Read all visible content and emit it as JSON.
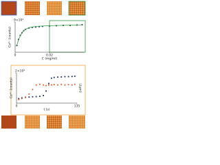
{
  "chart_data": [
    {
      "type": "scatter",
      "xlabel": "C (mg/ml)",
      "ylabel": "Co²⁺ (counts)",
      "xlim": [
        0,
        0.04
      ],
      "ylim": [
        0,
        90000
      ],
      "xticks": [
        0,
        0.02
      ],
      "yticks": [
        {
          "value": 90000,
          "label": "9×10⁴"
        }
      ],
      "x": [
        0.001,
        0.002,
        0.003,
        0.004,
        0.005,
        0.006,
        0.008,
        0.01,
        0.012,
        0.014,
        0.016,
        0.02,
        0.024,
        0.028,
        0.032,
        0.036,
        0.039
      ],
      "series": [
        {
          "color": "#1a2a5e",
          "values": [
            20000,
            38000,
            50000,
            58000,
            64000,
            68000,
            72000,
            74000,
            75000,
            76000,
            77000,
            78000,
            79000,
            80000,
            80000,
            81000,
            82000
          ]
        },
        {
          "color": "#2e9a3c",
          "line": true,
          "values": [
            21000,
            37000,
            49000,
            58000,
            64000,
            68000,
            73000,
            75000,
            76500,
            77500,
            78000,
            79000,
            79500,
            80000,
            80500,
            81000,
            81500
          ]
        }
      ]
    },
    {
      "type": "scatter",
      "xlabel": "t (s)",
      "ylabel": "Co²⁺ (counts)",
      "y2label": "L(μm)",
      "xlim": [
        0,
        135
      ],
      "ylim": [
        0,
        20000
      ],
      "y2lim": [
        0,
        1
      ],
      "xticks": [
        0,
        135
      ],
      "yticks": [
        {
          "value": 20000,
          "label": "2×10⁴"
        }
      ],
      "x": [
        5,
        12,
        20,
        28,
        36,
        44,
        52,
        60,
        66,
        72,
        78,
        84,
        92,
        100,
        108,
        116,
        124,
        130
      ],
      "series": [
        {
          "color": "#1a2a5e",
          "values": [
            3000,
            3500,
            3800,
            4000,
            4200,
            4300,
            4500,
            5000,
            8000,
            13000,
            16500,
            17000,
            17200,
            17300,
            17500,
            17500,
            17600,
            17800
          ]
        },
        {
          "color": "#e0521e",
          "axis": "y2",
          "values": [
            0.12,
            0.15,
            0.2,
            0.3,
            0.45,
            0.6,
            0.62,
            0.6,
            0.58,
            0.6,
            0.6,
            0.61,
            0.6,
            0.62,
            0.6,
            0.61,
            0.6,
            0.62
          ]
        }
      ]
    }
  ]
}
